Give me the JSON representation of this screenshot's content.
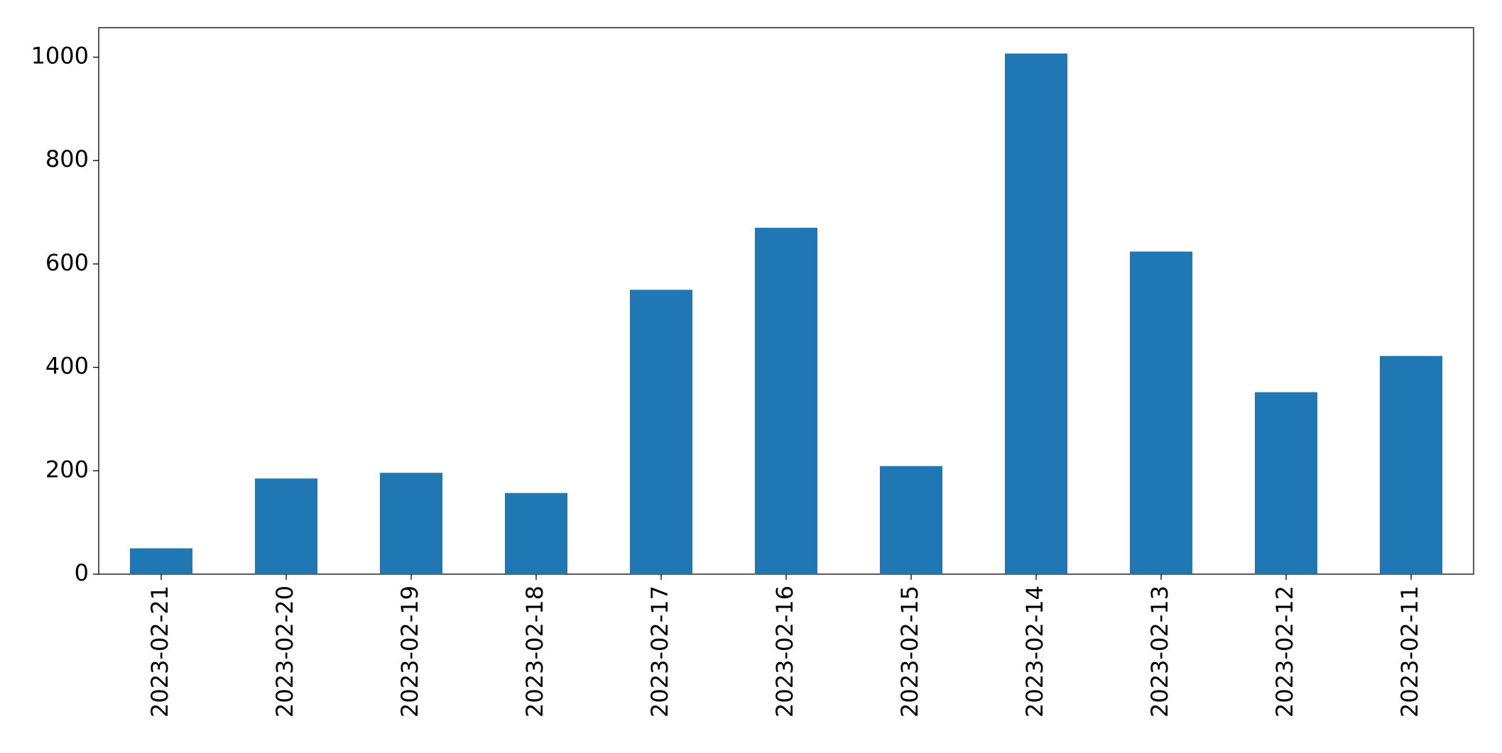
{
  "chart_data": {
    "type": "bar",
    "categories": [
      "2023-02-21",
      "2023-02-20",
      "2023-02-19",
      "2023-02-18",
      "2023-02-17",
      "2023-02-16",
      "2023-02-15",
      "2023-02-14",
      "2023-02-13",
      "2023-02-12",
      "2023-02-11"
    ],
    "values": [
      50,
      185,
      196,
      157,
      550,
      670,
      209,
      1007,
      624,
      352,
      422
    ],
    "color": "#1f77b4",
    "ylim": [
      0,
      1057
    ],
    "yticks": [
      0,
      200,
      400,
      600,
      800,
      1000
    ],
    "grid": false
  }
}
